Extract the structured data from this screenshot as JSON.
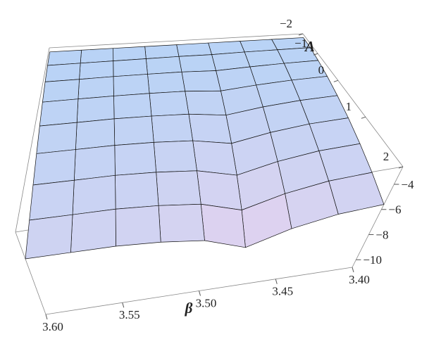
{
  "chart_data": {
    "type": "surface3d",
    "xlabel": "β",
    "ylabel": "A",
    "x": [
      3.4,
      3.425,
      3.45,
      3.475,
      3.5,
      3.525,
      3.55,
      3.575,
      3.6
    ],
    "y": [
      -2,
      -1.5,
      -1,
      -0.5,
      0,
      0.5,
      1,
      1.5,
      2
    ],
    "z": [
      [
        -2.8,
        -2.8,
        -2.8,
        -2.8,
        -2.8,
        -2.8,
        -2.8,
        -2.8,
        -2.8
      ],
      [
        -2.85,
        -2.85,
        -2.85,
        -2.87,
        -2.85,
        -2.85,
        -2.85,
        -2.85,
        -2.85
      ],
      [
        -2.98,
        -2.99,
        -3.03,
        -3.09,
        -3.01,
        -2.98,
        -2.96,
        -2.96,
        -2.95
      ],
      [
        -3.19,
        -3.22,
        -3.31,
        -3.45,
        -3.28,
        -3.21,
        -3.17,
        -3.15,
        -3.14
      ],
      [
        -3.5,
        -3.55,
        -3.7,
        -3.95,
        -3.65,
        -3.53,
        -3.45,
        -3.43,
        -3.4
      ],
      [
        -3.89,
        -3.97,
        -4.21,
        -4.6,
        -4.13,
        -3.93,
        -3.82,
        -3.78,
        -3.74
      ],
      [
        -4.38,
        -4.49,
        -4.83,
        -5.39,
        -4.71,
        -4.43,
        -4.26,
        -4.21,
        -4.15
      ],
      [
        -4.94,
        -5.1,
        -5.56,
        -6.32,
        -5.4,
        -5.02,
        -4.79,
        -4.72,
        -4.64
      ],
      [
        -5.6,
        -5.8,
        -6.4,
        -7.4,
        -6.2,
        -5.7,
        -5.4,
        -5.3,
        -5.2
      ]
    ],
    "xlim": [
      3.4,
      3.6
    ],
    "ylim": [
      -2,
      2
    ],
    "zlim": [
      -10.6,
      -2.6
    ],
    "xticks": [
      {
        "value": 3.6,
        "label": "3.60"
      },
      3.55,
      {
        "value": 3.5,
        "label": "3.50"
      },
      3.45,
      {
        "value": 3.4,
        "label": "3.40"
      }
    ],
    "yticks": [
      {
        "value": -2,
        "label": "−2"
      },
      {
        "value": -1,
        "label": "−1"
      },
      0,
      1,
      2
    ],
    "zticks": [
      {
        "value": -4,
        "label": "−4"
      },
      {
        "value": -6,
        "label": "−6"
      },
      {
        "value": -8,
        "label": "−8"
      },
      {
        "value": -10,
        "label": "−10"
      }
    ],
    "colors": [
      "#f6d2ec",
      "#b7d3f6"
    ]
  }
}
